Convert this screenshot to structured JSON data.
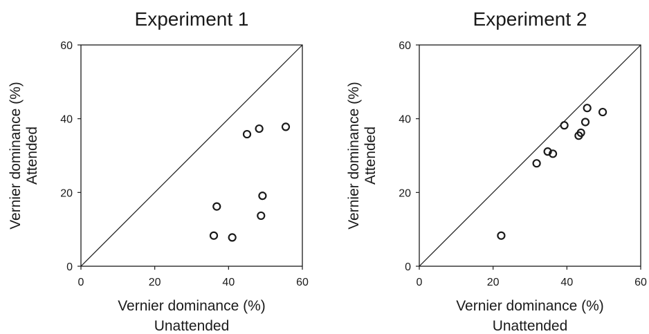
{
  "chart_data": [
    {
      "type": "scatter",
      "title": "Experiment 1",
      "xlabel": [
        "Vernier dominance (%)",
        "Unattended"
      ],
      "ylabel": [
        "Vernier dominance (%)",
        "Attended"
      ],
      "xlim": [
        0,
        60
      ],
      "ylim": [
        0,
        60
      ],
      "xticks": [
        "0",
        "20",
        "40",
        "60"
      ],
      "yticks": [
        "0",
        "20",
        "40",
        "60"
      ],
      "reference_line": "y = x",
      "grid": false,
      "points": [
        {
          "x": 45.0,
          "y": 35.8
        },
        {
          "x": 48.3,
          "y": 37.3
        },
        {
          "x": 55.5,
          "y": 37.8
        },
        {
          "x": 36.8,
          "y": 16.2
        },
        {
          "x": 49.2,
          "y": 19.1
        },
        {
          "x": 48.8,
          "y": 13.7
        },
        {
          "x": 36.0,
          "y": 8.3
        },
        {
          "x": 41.0,
          "y": 7.8
        }
      ]
    },
    {
      "type": "scatter",
      "title": "Experiment 2",
      "xlabel": [
        "Vernier dominance (%)",
        "Unattended"
      ],
      "ylabel": [
        "Vernier dominance (%)",
        "Attended"
      ],
      "xlim": [
        0,
        60
      ],
      "ylim": [
        0,
        60
      ],
      "xticks": [
        "0",
        "20",
        "40",
        "60"
      ],
      "yticks": [
        "0",
        "20",
        "40",
        "60"
      ],
      "reference_line": "y = x",
      "grid": false,
      "points": [
        {
          "x": 45.5,
          "y": 42.9
        },
        {
          "x": 49.7,
          "y": 41.8
        },
        {
          "x": 45.0,
          "y": 39.1
        },
        {
          "x": 39.3,
          "y": 38.2
        },
        {
          "x": 43.8,
          "y": 36.2
        },
        {
          "x": 43.2,
          "y": 35.4
        },
        {
          "x": 34.8,
          "y": 31.1
        },
        {
          "x": 36.2,
          "y": 30.5
        },
        {
          "x": 31.8,
          "y": 27.9
        },
        {
          "x": 22.2,
          "y": 8.3
        }
      ]
    }
  ]
}
